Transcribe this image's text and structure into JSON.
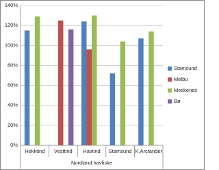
{
  "chart_data": {
    "type": "bar",
    "x_label": "Nordland havfiske",
    "categories": [
      "Hekktind",
      "Vesttind",
      "Havtind",
      "Stamsund",
      "K.Arctander"
    ],
    "series": [
      {
        "name": "Stamsund",
        "color": "#4f81bd",
        "values": [
          115,
          null,
          124,
          72,
          107
        ]
      },
      {
        "name": "Melbu",
        "color": "#c0504d",
        "values": [
          null,
          125,
          96,
          null,
          null
        ]
      },
      {
        "name": "Moskenes",
        "color": "#9bbb59",
        "values": [
          129,
          null,
          130,
          104,
          114
        ]
      },
      {
        "name": "Bø",
        "color": "#8064a2",
        "values": [
          null,
          116,
          null,
          null,
          null
        ]
      }
    ],
    "ylim": [
      0,
      140
    ],
    "yticks": [
      {
        "value": 0,
        "label": "0%"
      },
      {
        "value": 20,
        "label": "20%"
      },
      {
        "value": 40,
        "label": "40%"
      },
      {
        "value": 60,
        "label": "60%"
      },
      {
        "value": 80,
        "label": "80%"
      },
      {
        "value": 100,
        "label": "100%"
      },
      {
        "value": 120,
        "label": "120%"
      },
      {
        "value": 140,
        "label": "140%"
      }
    ],
    "grid": true,
    "legend": "right"
  }
}
